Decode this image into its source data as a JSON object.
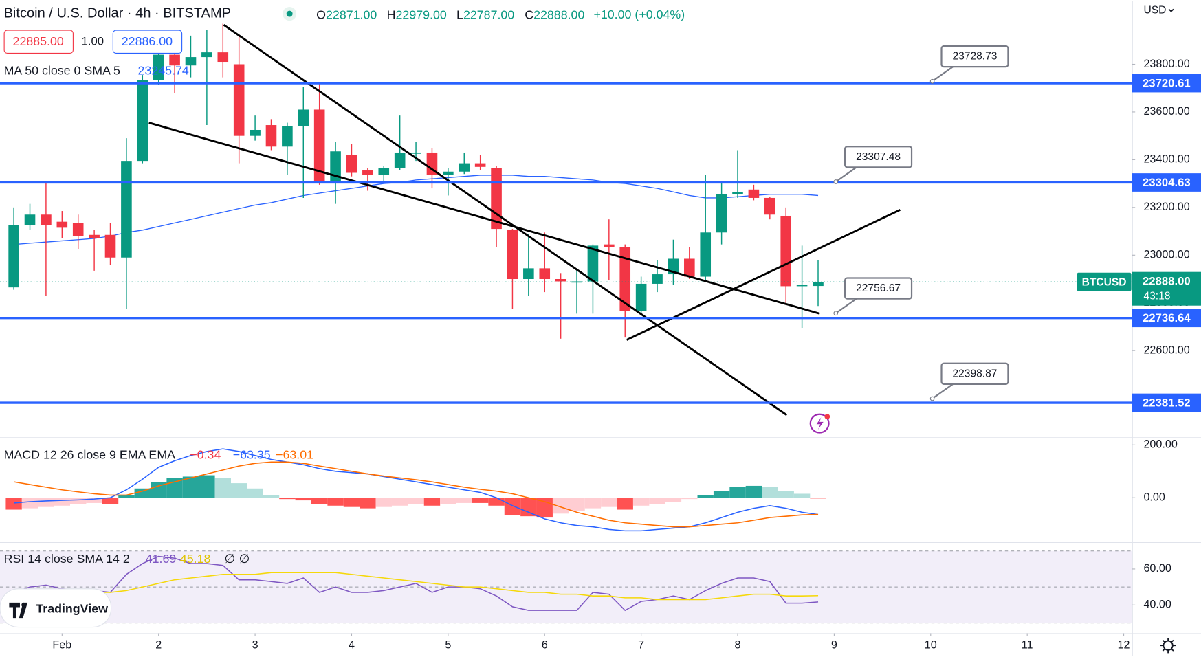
{
  "header": {
    "ohlc": [
      {
        "key": "O",
        "value": "22871.00"
      },
      {
        "key": "H",
        "value": "22979.00"
      },
      {
        "key": "L",
        "value": "22787.00"
      },
      {
        "key": "C",
        "value": "22888.00"
      }
    ],
    "change": "+10.00 (+0.04%)",
    "bid": "22885.00",
    "spread": "1.00",
    "ask": "22886.00",
    "currency": "USD",
    "brand": "TradingView"
  },
  "chart_data": [
    {
      "type": "candlestick",
      "title": "Bitcoin / U.S. Dollar · 4h · BITSTAMP",
      "up_color": "#089981",
      "down_color": "#f23645",
      "open": [
        22865,
        23125,
        23170,
        23140,
        23135,
        23085,
        23085,
        22990,
        23395,
        23735,
        23840,
        23795,
        23830,
        23850,
        23800,
        23500,
        23545,
        23455,
        23540,
        23610,
        23310,
        23420,
        23355,
        23335,
        23365,
        23425,
        23430,
        23335,
        23350,
        23385,
        23365,
        23105,
        22900,
        22945,
        22900,
        22885,
        22890,
        23045,
        23035,
        22765,
        22880,
        22920,
        22985,
        22910,
        23095,
        23255,
        23275,
        23240,
        23165,
        22870,
        22871
      ],
      "high": [
        23200,
        23215,
        23310,
        23185,
        23170,
        23105,
        23135,
        23490,
        23755,
        23940,
        23905,
        23920,
        23945,
        23970,
        23920,
        23585,
        23570,
        23555,
        23705,
        23720,
        23475,
        23465,
        23365,
        23375,
        23585,
        23475,
        23450,
        23365,
        23430,
        23420,
        23375,
        23110,
        23090,
        23095,
        22925,
        22945,
        23045,
        23150,
        23045,
        22910,
        22980,
        23065,
        23035,
        23335,
        23305,
        23440,
        23295,
        23245,
        23200,
        23040,
        22979
      ],
      "low": [
        22855,
        23105,
        22830,
        23070,
        23025,
        22935,
        22960,
        22775,
        23385,
        23715,
        23680,
        23745,
        23545,
        23745,
        23385,
        23480,
        23440,
        23335,
        23240,
        23295,
        23215,
        23330,
        23270,
        23310,
        23355,
        23395,
        23280,
        23250,
        23340,
        23355,
        23035,
        22775,
        22830,
        22845,
        22650,
        22755,
        22755,
        22895,
        22655,
        22755,
        22845,
        22875,
        22900,
        22895,
        23045,
        23240,
        23230,
        23150,
        22800,
        22695,
        22787
      ],
      "close": [
        23125,
        23170,
        23125,
        23115,
        23080,
        23070,
        22990,
        23395,
        23735,
        23840,
        23795,
        23830,
        23850,
        23810,
        23500,
        23525,
        23455,
        23540,
        23610,
        23310,
        23435,
        23345,
        23335,
        23365,
        23430,
        23430,
        23335,
        23350,
        23385,
        23370,
        23110,
        22900,
        22945,
        22900,
        22890,
        22890,
        23040,
        23035,
        22765,
        22880,
        22920,
        22985,
        22910,
        23095,
        23255,
        23265,
        23240,
        23170,
        22870,
        22875,
        22888
      ],
      "series": [
        {
          "name": "MA 50 close 0 SMA 5",
          "color": "#2962ff",
          "last_label": "23245.74",
          "values": [
            23045,
            23050,
            23055,
            23060,
            23065,
            23070,
            23080,
            23095,
            23105,
            23120,
            23135,
            23150,
            23165,
            23180,
            23195,
            23210,
            23220,
            23235,
            23250,
            23260,
            23270,
            23280,
            23290,
            23300,
            23305,
            23315,
            23320,
            23325,
            23330,
            23335,
            23335,
            23335,
            23330,
            23330,
            23325,
            23320,
            23315,
            23305,
            23300,
            23290,
            23280,
            23265,
            23250,
            23240,
            23240,
            23245,
            23250,
            23255,
            23255,
            23255,
            23250
          ]
        }
      ],
      "xlim": [
        -0.86,
        69.52
      ],
      "xticks": [
        {
          "value": 3,
          "label": "Feb"
        },
        {
          "value": 9,
          "label": "2"
        },
        {
          "value": 15,
          "label": "3"
        },
        {
          "value": 21,
          "label": "4"
        },
        {
          "value": 27,
          "label": "5"
        },
        {
          "value": 33,
          "label": "6"
        },
        {
          "value": 39,
          "label": "7"
        },
        {
          "value": 45,
          "label": "8"
        },
        {
          "value": 51,
          "label": "9"
        },
        {
          "value": 57,
          "label": "10"
        },
        {
          "value": 63,
          "label": "11"
        },
        {
          "value": 69,
          "label": "12"
        }
      ],
      "ylim": [
        22237,
        24066
      ],
      "yticks": [
        {
          "value": 23800,
          "label": "23800.00"
        },
        {
          "value": 23600,
          "label": "23600.00"
        },
        {
          "value": 23400,
          "label": "23400.00"
        },
        {
          "value": 23200,
          "label": "23200.00"
        },
        {
          "value": 23000,
          "label": "23000.00"
        },
        {
          "value": 22800,
          "label": "22800.00"
        },
        {
          "value": 22600,
          "label": "22600.00"
        }
      ],
      "level_color": "#2962ff",
      "levels": [
        23720.61,
        23304.63,
        22736.64,
        22381.52
      ],
      "callouts": [
        {
          "x": 57.1,
          "y": 23728.73
        },
        {
          "x": 51.1,
          "y": 23307.48
        },
        {
          "x": 51.1,
          "y": 22756.67
        },
        {
          "x": 57.1,
          "y": 22398.87
        }
      ],
      "trend_lines": [
        {
          "x": [
            13.05,
            48.05
          ],
          "y": [
            23965,
            22330
          ]
        },
        {
          "x": [
            8.4,
            50.1
          ],
          "y": [
            23555,
            22755
          ]
        },
        {
          "x": [
            38.1,
            55.1
          ],
          "y": [
            22645,
            23190
          ]
        }
      ],
      "last_price": {
        "name": "BTCUSD",
        "label": "22888.00",
        "countdown": "43:18"
      }
    },
    {
      "type": "combo",
      "title": "MACD 12 26 close 9 EMA EMA",
      "hist_colors": [
        "#26a69a",
        "#b2dfdb",
        "#ff5252",
        "#ffcdd2"
      ],
      "series": [
        {
          "style": "histogram",
          "color": "#f23645",
          "last_label": "−0.34",
          "values": [
            -45,
            -40,
            -35,
            -30,
            -25,
            -20,
            -25,
            10,
            35,
            60,
            75,
            80,
            85,
            75,
            55,
            35,
            10,
            -5,
            -10,
            -25,
            -30,
            -35,
            -40,
            -35,
            -30,
            -25,
            -30,
            -25,
            -20,
            -20,
            -30,
            -65,
            -70,
            -75,
            -60,
            -50,
            -40,
            -35,
            -45,
            -30,
            -25,
            -15,
            -5,
            10,
            25,
            40,
            45,
            40,
            25,
            15,
            -0.34
          ]
        },
        {
          "style": "line",
          "color": "#2962ff",
          "last_label": "−63.35",
          "values": [
            -20,
            -15,
            -12,
            -10,
            -8,
            -5,
            0,
            30,
            70,
            115,
            140,
            160,
            175,
            185,
            175,
            160,
            145,
            135,
            125,
            110,
            100,
            95,
            90,
            80,
            70,
            60,
            50,
            40,
            30,
            20,
            0,
            -30,
            -55,
            -80,
            -95,
            -105,
            -110,
            -120,
            -125,
            -125,
            -120,
            -115,
            -110,
            -95,
            -75,
            -55,
            -40,
            -30,
            -40,
            -55,
            -63.35
          ]
        },
        {
          "style": "line",
          "color": "#ff6d00",
          "last_label": "−63.01",
          "values": [
            60,
            50,
            40,
            30,
            22,
            15,
            10,
            10,
            25,
            45,
            60,
            75,
            90,
            105,
            120,
            130,
            135,
            135,
            130,
            120,
            110,
            100,
            90,
            82,
            75,
            68,
            60,
            50,
            40,
            32,
            25,
            15,
            0,
            -15,
            -35,
            -55,
            -70,
            -85,
            -95,
            -100,
            -105,
            -110,
            -110,
            -105,
            -100,
            -95,
            -85,
            -75,
            -70,
            -65,
            -63.01
          ]
        }
      ],
      "ylim": [
        -168,
        226
      ],
      "yticks": [
        {
          "value": 200,
          "label": "200.00"
        },
        {
          "value": 0,
          "label": "0.00"
        }
      ]
    },
    {
      "type": "line",
      "title": "RSI 14 close SMA 14 2",
      "extra_labels": [
        "∅",
        "∅"
      ],
      "series": [
        {
          "color": "#7e57c2",
          "last_label": "41.69",
          "values": [
            47,
            50,
            51,
            49,
            48,
            48,
            47,
            57,
            63,
            67,
            66,
            63,
            63,
            62,
            54,
            54,
            53,
            52,
            55,
            47,
            50,
            47,
            47,
            48,
            50,
            52,
            47,
            50,
            50,
            49,
            45,
            39,
            37,
            37,
            37,
            37,
            47,
            46,
            37,
            42,
            43,
            45,
            43,
            48,
            52,
            55,
            55,
            53,
            41,
            41,
            41.69
          ]
        },
        {
          "color": "#f5d80a",
          "last_label": "45.18",
          "values": [
            46,
            47,
            47,
            47,
            47,
            47,
            47,
            48,
            50,
            52,
            54,
            55,
            56,
            57,
            57,
            57,
            58,
            58,
            58,
            58,
            58,
            57,
            56,
            55,
            54,
            53,
            52,
            51,
            50,
            50,
            49,
            48,
            47,
            47,
            46,
            46,
            45,
            45,
            44,
            44,
            43,
            43,
            43,
            43,
            44,
            45,
            46,
            46,
            45,
            45,
            45.18
          ]
        }
      ],
      "bands": [
        70,
        50,
        30
      ],
      "band_fill": "rgba(126,87,194,0.1)",
      "ylim": [
        24.3,
        74.5
      ],
      "yticks": [
        {
          "value": 60,
          "label": "60.00"
        },
        {
          "value": 40,
          "label": "40.00"
        }
      ]
    }
  ]
}
